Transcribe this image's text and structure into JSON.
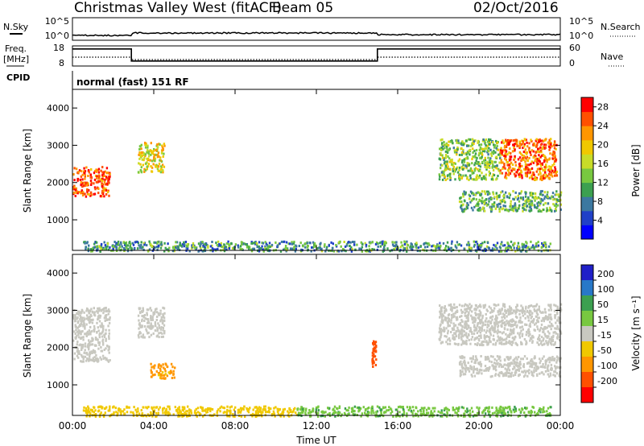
{
  "header": {
    "station": "Christmas Valley West (fitACF)",
    "beam": "Beam 05",
    "date": "02/Oct/2016"
  },
  "top_panels": {
    "nsky_label": "N.Sky",
    "nsky_ticks": [
      "10^5",
      "10^0"
    ],
    "nsearch_label": "N.Search",
    "nsearch_ticks": [
      "10^5",
      "10^0"
    ],
    "freq_label_1": "Freq.",
    "freq_label_2": "[MHz]",
    "freq_ticks": [
      "18",
      "8"
    ],
    "nave_label": "Nave",
    "nave_ticks": [
      "60",
      "0"
    ],
    "cpid_label": "CPID",
    "cpid_text": "normal (fast) 151 RF"
  },
  "axes": {
    "xlabel": "Time UT",
    "x_ticks": [
      "00:00",
      "04:00",
      "08:00",
      "12:00",
      "16:00",
      "20:00",
      "00:00"
    ],
    "ylabel": "Slant Range [km]",
    "y_ticks": [
      "4000",
      "3000",
      "2000",
      "1000"
    ]
  },
  "colorbars": {
    "power_label": "Power [dB]",
    "power_ticks": [
      "28",
      "24",
      "20",
      "16",
      "12",
      "8",
      "4"
    ],
    "power_colors": [
      "#0000ff",
      "#2040c8",
      "#3c78a0",
      "#3ca050",
      "#78c840",
      "#c8dc28",
      "#f0c800",
      "#ff9600",
      "#ff5000",
      "#ff0000"
    ],
    "velocity_label": "Velocity [m s⁻¹]",
    "velocity_ticks": [
      "200",
      "100",
      "50",
      "15",
      "-15",
      "-50",
      "-100",
      "-200"
    ],
    "velocity_colors": [
      "#2020c8",
      "#2878c8",
      "#3ca050",
      "#78c840",
      "#c8c8c0",
      "#f0c800",
      "#ff9600",
      "#ff5000",
      "#ff0000"
    ]
  },
  "chart_data": [
    {
      "type": "heatmap",
      "title": "Power",
      "x": "time (hours UT, 0-24)",
      "ylim": [
        180,
        4500
      ],
      "regions": [
        {
          "t0": 0.0,
          "t1": 1.8,
          "r0": 1650,
          "r1": 2450,
          "value_db": 26
        },
        {
          "t0": 3.2,
          "t1": 4.5,
          "r0": 2300,
          "r1": 3100,
          "value_db": 18
        },
        {
          "t0": 18.0,
          "t1": 21.0,
          "r0": 2100,
          "r1": 3200,
          "value_db": 14
        },
        {
          "t0": 21.0,
          "t1": 23.8,
          "r0": 2100,
          "r1": 3200,
          "value_db": 24
        },
        {
          "t0": 19.0,
          "t1": 24.0,
          "r0": 1250,
          "r1": 1800,
          "value_db": 12
        },
        {
          "t0": 0.5,
          "t1": 23.5,
          "r0": 180,
          "r1": 450,
          "value_db": 10
        }
      ]
    },
    {
      "type": "heatmap",
      "title": "Velocity",
      "x": "time (hours UT, 0-24)",
      "ylim": [
        180,
        4500
      ],
      "regions": [
        {
          "t0": 0.0,
          "t1": 1.8,
          "r0": 1650,
          "r1": 3100,
          "value_ms": 0
        },
        {
          "t0": 3.2,
          "t1": 4.5,
          "r0": 2300,
          "r1": 3100,
          "value_ms": 0
        },
        {
          "t0": 3.8,
          "t1": 5.0,
          "r0": 1200,
          "r1": 1600,
          "value_ms": -60
        },
        {
          "t0": 14.7,
          "t1": 14.9,
          "r0": 1500,
          "r1": 2200,
          "value_ms": -150
        },
        {
          "t0": 18.0,
          "t1": 24.0,
          "r0": 2100,
          "r1": 3200,
          "value_ms": 0
        },
        {
          "t0": 19.0,
          "t1": 24.0,
          "r0": 1250,
          "r1": 1800,
          "value_ms": 0
        },
        {
          "t0": 0.5,
          "t1": 11.0,
          "r0": 180,
          "r1": 450,
          "value_ms": -30
        },
        {
          "t0": 11.0,
          "t1": 23.5,
          "r0": 180,
          "r1": 450,
          "value_ms": 40
        }
      ]
    },
    {
      "type": "line",
      "title": "Freq.",
      "x": [
        0,
        2.9,
        2.9,
        15.0,
        15.0,
        24
      ],
      "series": [
        {
          "name": "Freq.",
          "values": [
            16.5,
            16.5,
            10.5,
            10.5,
            16.5,
            16.5
          ]
        }
      ],
      "ylim": [
        8,
        18
      ]
    }
  ]
}
